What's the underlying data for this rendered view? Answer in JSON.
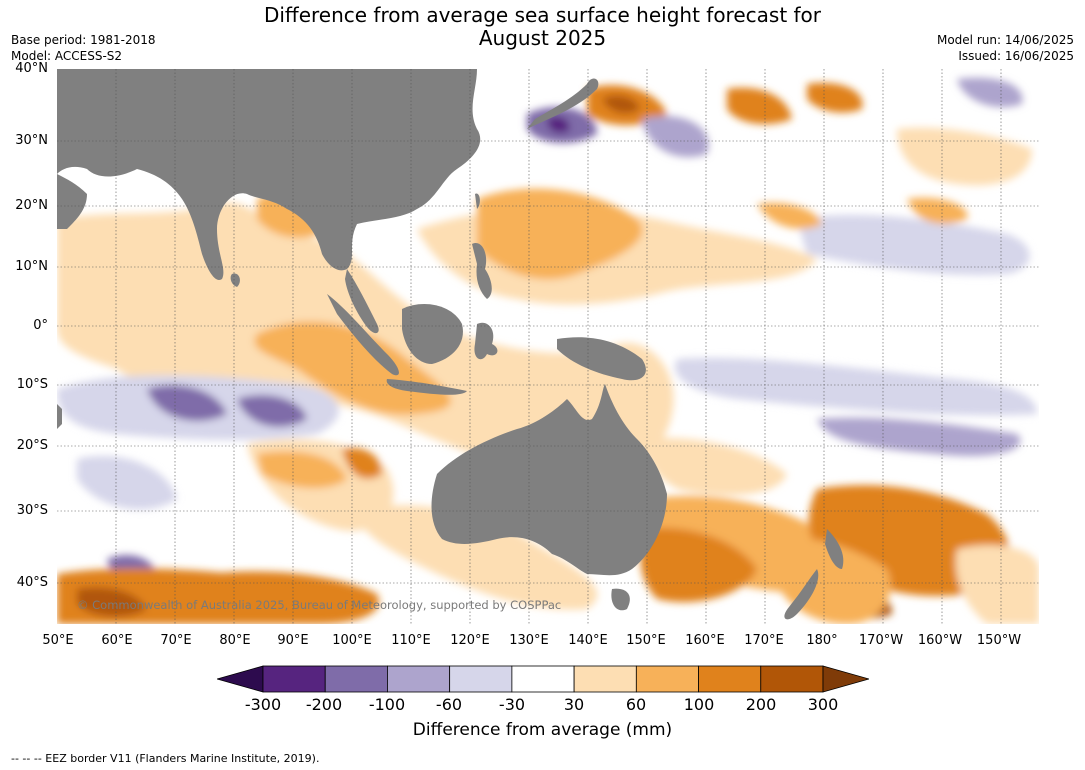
{
  "title": {
    "line1": "Difference from average sea surface height forecast for",
    "line2": "August 2025"
  },
  "meta_left": {
    "base_period": "Base period: 1981-2018",
    "model": "Model: ACCESS-S2"
  },
  "meta_right": {
    "model_run": "Model run: 14/06/2025",
    "issued": "Issued: 16/06/2025"
  },
  "lat_labels": [
    "40°N",
    "30°N",
    "20°N",
    "10°N",
    "0°",
    "10°S",
    "20°S",
    "30°S",
    "40°S"
  ],
  "lon_labels": [
    "50°E",
    "60°E",
    "70°E",
    "80°E",
    "90°E",
    "100°E",
    "110°E",
    "120°E",
    "130°E",
    "140°E",
    "150°E",
    "160°E",
    "170°E",
    "180°",
    "170°W",
    "160°W",
    "150°W"
  ],
  "copyright": "© Commonwealth of Australia 2025, Bureau of Meteorology, supported by COSPPac",
  "colorbar": {
    "ticks": [
      "-300",
      "-200",
      "-100",
      "-60",
      "-30",
      "30",
      "60",
      "100",
      "200",
      "300"
    ],
    "colors": [
      "#2d0b4e",
      "#56247f",
      "#7f6ca9",
      "#ada4cd",
      "#d6d6ea",
      "#ffffff",
      "#fddeb3",
      "#f7b159",
      "#e0821c",
      "#b15607",
      "#7f3b08"
    ],
    "label": "Difference from average (mm)"
  },
  "footer": "--  --  -- EEZ border V11 (Flanders Marine Institute, 2019).",
  "map_colors": {
    "land": "#808080",
    "grid": "#555555"
  }
}
